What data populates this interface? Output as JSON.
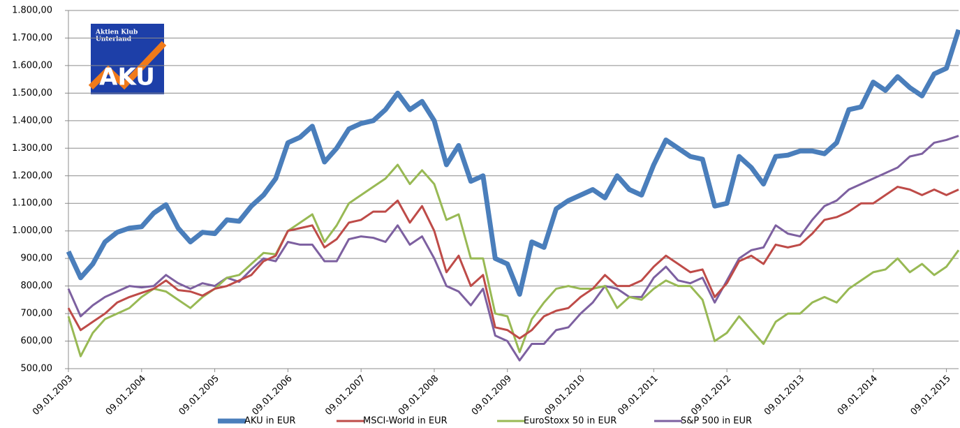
{
  "chart_data": {
    "type": "line",
    "logo": {
      "line1": "Aktien Klub",
      "line2": "Unterland",
      "mark": "AKU"
    },
    "categories": [
      "09.01.2003",
      null,
      null,
      null,
      null,
      null,
      "09.01.2004",
      null,
      null,
      null,
      null,
      null,
      "09.01.2005",
      null,
      null,
      null,
      null,
      null,
      "09.01.2006",
      null,
      null,
      null,
      null,
      null,
      "09.01.2007",
      null,
      null,
      null,
      null,
      null,
      "09.01.2008",
      null,
      null,
      null,
      null,
      null,
      "09.01.2009",
      null,
      null,
      null,
      null,
      null,
      "09.01.2010",
      null,
      null,
      null,
      null,
      null,
      "09.01.2011",
      null,
      null,
      null,
      null,
      null,
      "09.01.2012",
      null,
      null,
      null,
      null,
      null,
      "09.01.2013",
      null,
      null,
      null,
      null,
      null,
      "09.01.2014",
      null,
      null,
      null,
      null,
      null,
      "09.01.2015",
      null
    ],
    "series": [
      {
        "name": "AKU in EUR",
        "color": "#4a7ebb",
        "width": 7,
        "values": [
          925,
          830,
          880,
          960,
          995,
          1010,
          1015,
          1065,
          1095,
          1010,
          960,
          995,
          990,
          1040,
          1035,
          1090,
          1130,
          1190,
          1320,
          1340,
          1380,
          1250,
          1300,
          1370,
          1390,
          1400,
          1440,
          1500,
          1440,
          1470,
          1400,
          1240,
          1310,
          1180,
          1200,
          900,
          880,
          770,
          960,
          940,
          1080,
          1110,
          1130,
          1150,
          1120,
          1200,
          1150,
          1130,
          1240,
          1330,
          1300,
          1270,
          1260,
          1090,
          1100,
          1270,
          1230,
          1170,
          1270,
          1275,
          1290,
          1290,
          1280,
          1320,
          1440,
          1450,
          1540,
          1510,
          1560,
          1520,
          1490,
          1570,
          1590,
          1730
        ]
      },
      {
        "name": "MSCI-World in EUR",
        "color": "#be4b48",
        "width": 3,
        "values": [
          720,
          640,
          670,
          700,
          740,
          760,
          775,
          790,
          820,
          785,
          780,
          765,
          790,
          800,
          820,
          840,
          890,
          910,
          1000,
          1010,
          1020,
          940,
          970,
          1030,
          1040,
          1070,
          1070,
          1110,
          1030,
          1090,
          1000,
          850,
          910,
          800,
          840,
          650,
          640,
          610,
          640,
          690,
          710,
          720,
          760,
          790,
          840,
          800,
          800,
          820,
          870,
          910,
          880,
          850,
          860,
          760,
          810,
          890,
          910,
          880,
          950,
          940,
          950,
          990,
          1040,
          1050,
          1070,
          1100,
          1100,
          1130,
          1160,
          1150,
          1130,
          1150,
          1130,
          1150
        ]
      },
      {
        "name": "EuroStoxx 50 in EUR",
        "color": "#98b954",
        "width": 3,
        "values": [
          690,
          545,
          630,
          680,
          700,
          720,
          760,
          790,
          780,
          750,
          720,
          760,
          790,
          830,
          840,
          880,
          920,
          915,
          1000,
          1030,
          1060,
          960,
          1020,
          1100,
          1130,
          1160,
          1190,
          1240,
          1170,
          1220,
          1170,
          1040,
          1060,
          900,
          900,
          700,
          690,
          560,
          680,
          740,
          790,
          800,
          790,
          790,
          800,
          720,
          760,
          750,
          790,
          820,
          800,
          800,
          750,
          600,
          630,
          690,
          640,
          590,
          670,
          700,
          700,
          740,
          760,
          740,
          790,
          820,
          850,
          860,
          900,
          850,
          880,
          840,
          870,
          930
        ]
      },
      {
        "name": "S&P 500 in EUR",
        "color": "#7d60a0",
        "width": 3,
        "values": [
          790,
          690,
          730,
          760,
          780,
          800,
          795,
          800,
          840,
          810,
          790,
          810,
          800,
          830,
          815,
          860,
          900,
          890,
          960,
          950,
          950,
          890,
          890,
          970,
          980,
          975,
          960,
          1020,
          950,
          980,
          900,
          800,
          780,
          730,
          790,
          620,
          600,
          530,
          590,
          590,
          640,
          650,
          700,
          740,
          800,
          790,
          760,
          760,
          830,
          870,
          820,
          810,
          830,
          740,
          820,
          900,
          930,
          940,
          1020,
          990,
          980,
          1040,
          1090,
          1110,
          1150,
          1170,
          1190,
          1210,
          1230,
          1270,
          1280,
          1320,
          1330,
          1345
        ]
      }
    ],
    "ylim": [
      500,
      1800
    ],
    "yticks": [
      {
        "value": 500,
        "label": "500,00"
      },
      {
        "value": 600,
        "label": "600,00"
      },
      {
        "value": 700,
        "label": "700,00"
      },
      {
        "value": 800,
        "label": "800,00"
      },
      {
        "value": 900,
        "label": "900,00"
      },
      {
        "value": 1000,
        "label": "1.000,00"
      },
      {
        "value": 1100,
        "label": "1.100,00"
      },
      {
        "value": 1200,
        "label": "1.200,00"
      },
      {
        "value": 1300,
        "label": "1.300,00"
      },
      {
        "value": 1400,
        "label": "1.400,00"
      },
      {
        "value": 1500,
        "label": "1.500,00"
      },
      {
        "value": 1600,
        "label": "1.600,00"
      },
      {
        "value": 1700,
        "label": "1.700,00"
      },
      {
        "value": 1800,
        "label": "1.800,00"
      }
    ],
    "grid": true,
    "legend": "bottom"
  }
}
